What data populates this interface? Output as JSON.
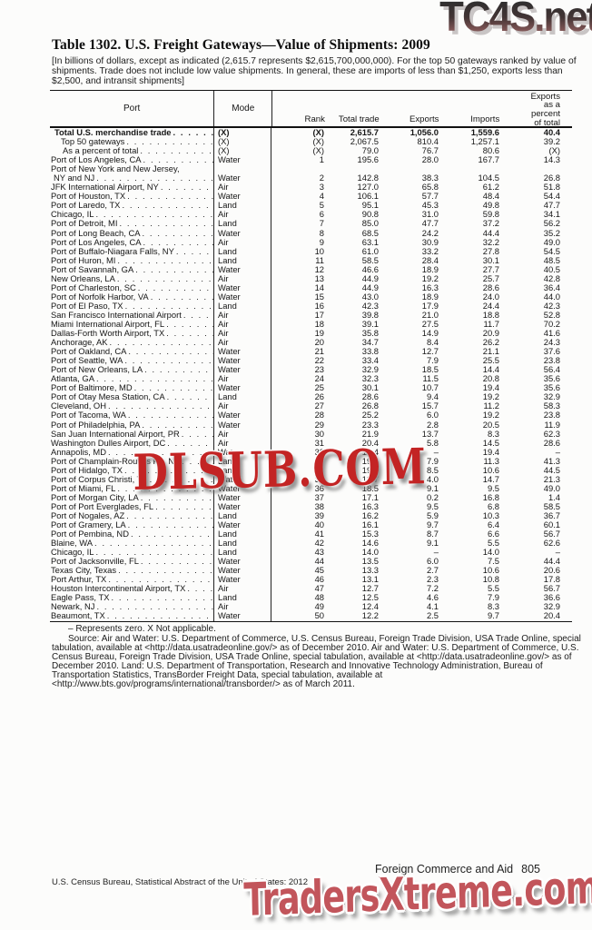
{
  "watermarks": {
    "top": "TC4S.net",
    "middle": "DLSUB.COM",
    "bottom": "TradersXtreme.com"
  },
  "title": "Table 1302. U.S. Freight Gateways—Value of Shipments: 2009",
  "note": "[In billions of dollars, except as indicated (2,615.7 represents $2,615,700,000,000). For the top 50 gateways ranked by value of shipments. Trade does not include low value shipments. In general, these are imports of less than $1,250, exports less than $2,500, and intransit shipments]",
  "table": {
    "headers": {
      "port": "Port",
      "mode": "Mode",
      "rank": "Rank",
      "total": "Total trade",
      "exports": "Exports",
      "imports": "Imports",
      "pct_lines": [
        "Exports",
        "as a",
        "percent",
        "of total"
      ]
    },
    "rows": [
      {
        "port": "Total U.S. merchandise trade",
        "mode": "(X)",
        "rank": "(X)",
        "total": "2,615.7",
        "exports": "1,056.0",
        "imports": "1,559.6",
        "pct": "40.4",
        "bold": true,
        "indent": 4
      },
      {
        "port": "Top 50 gateways",
        "mode": "(X)",
        "rank": "(X)",
        "total": "2,067.5",
        "exports": "810.4",
        "imports": "1,257.1",
        "pct": "39.2",
        "indent": 11
      },
      {
        "port": "As a percent of total",
        "mode": "(X)",
        "rank": "(X)",
        "total": "79.0",
        "exports": "76.7",
        "imports": "80.6",
        "pct": "(X)",
        "indent": 13
      },
      {
        "port": "Port of Los Angeles, CA",
        "mode": "Water",
        "rank": "1",
        "total": "195.6",
        "exports": "28.0",
        "imports": "167.7",
        "pct": "14.3"
      },
      {
        "pre_line": "Port of New York and New Jersey,",
        "port": "NY and NJ",
        "mode": "Water",
        "rank": "2",
        "total": "142.8",
        "exports": "38.3",
        "imports": "104.5",
        "pct": "26.8",
        "indent": 3
      },
      {
        "port": "JFK International Airport, NY",
        "mode": "Air",
        "rank": "3",
        "total": "127.0",
        "exports": "65.8",
        "imports": "61.2",
        "pct": "51.8"
      },
      {
        "port": "Port of Houston, TX",
        "mode": "Water",
        "rank": "4",
        "total": "106.1",
        "exports": "57.7",
        "imports": "48.4",
        "pct": "54.4"
      },
      {
        "port": "Port of Laredo, TX",
        "mode": "Land",
        "rank": "5",
        "total": "95.1",
        "exports": "45.3",
        "imports": "49.8",
        "pct": "47.7"
      },
      {
        "port": "Chicago, IL",
        "mode": "Air",
        "rank": "6",
        "total": "90.8",
        "exports": "31.0",
        "imports": "59.8",
        "pct": "34.1"
      },
      {
        "port": "Port of Detroit, MI",
        "mode": "Land",
        "rank": "7",
        "total": "85.0",
        "exports": "47.7",
        "imports": "37.2",
        "pct": "56.2"
      },
      {
        "port": "Port of Long Beach, CA",
        "mode": "Water",
        "rank": "8",
        "total": "68.5",
        "exports": "24.2",
        "imports": "44.4",
        "pct": "35.2"
      },
      {
        "port": "Port of Los Angeles, CA",
        "mode": "Air",
        "rank": "9",
        "total": "63.1",
        "exports": "30.9",
        "imports": "32.2",
        "pct": "49.0"
      },
      {
        "port": "Port of Buffalo-Niagara Falls, NY",
        "mode": "Land",
        "rank": "10",
        "total": "61.0",
        "exports": "33.2",
        "imports": "27.8",
        "pct": "54.5"
      },
      {
        "port": "Port of Huron, MI",
        "mode": "Land",
        "rank": "11",
        "total": "58.5",
        "exports": "28.4",
        "imports": "30.1",
        "pct": "48.5"
      },
      {
        "port": "Port of Savannah, GA",
        "mode": "Water",
        "rank": "12",
        "total": "46.6",
        "exports": "18.9",
        "imports": "27.7",
        "pct": "40.5"
      },
      {
        "port": "New Orleans, LA",
        "mode": "Air",
        "rank": "13",
        "total": "44.9",
        "exports": "19.2",
        "imports": "25.7",
        "pct": "42.8"
      },
      {
        "port": "Port of Charleston, SC",
        "mode": "Water",
        "rank": "14",
        "total": "44.9",
        "exports": "16.3",
        "imports": "28.6",
        "pct": "36.4"
      },
      {
        "port": "Port of Norfolk Harbor, VA",
        "mode": "Water",
        "rank": "15",
        "total": "43.0",
        "exports": "18.9",
        "imports": "24.0",
        "pct": "44.0"
      },
      {
        "port": "Port of El Paso, TX",
        "mode": "Land",
        "rank": "16",
        "total": "42.3",
        "exports": "17.9",
        "imports": "24.4",
        "pct": "42.3"
      },
      {
        "port": "San Francisco International Airport",
        "mode": "Air",
        "rank": "17",
        "total": "39.8",
        "exports": "21.0",
        "imports": "18.8",
        "pct": "52.8"
      },
      {
        "port": "Miami International Airport, FL",
        "mode": "Air",
        "rank": "18",
        "total": "39.1",
        "exports": "27.5",
        "imports": "11.7",
        "pct": "70.2"
      },
      {
        "port": "Dallas-Forth Worth Airport, TX",
        "mode": "Air",
        "rank": "19",
        "total": "35.8",
        "exports": "14.9",
        "imports": "20.9",
        "pct": "41.6"
      },
      {
        "port": "Anchorage, AK",
        "mode": "Air",
        "rank": "20",
        "total": "34.7",
        "exports": "8.4",
        "imports": "26.2",
        "pct": "24.3"
      },
      {
        "port": "Port of Oakland, CA",
        "mode": "Water",
        "rank": "21",
        "total": "33.8",
        "exports": "12.7",
        "imports": "21.1",
        "pct": "37.6"
      },
      {
        "port": "Port of Seattle, WA",
        "mode": "Water",
        "rank": "22",
        "total": "33.4",
        "exports": "7.9",
        "imports": "25.5",
        "pct": "23.8"
      },
      {
        "port": "Port of New Orleans, LA",
        "mode": "Water",
        "rank": "23",
        "total": "32.9",
        "exports": "18.5",
        "imports": "14.4",
        "pct": "56.4"
      },
      {
        "port": "Atlanta, GA",
        "mode": "Air",
        "rank": "24",
        "total": "32.3",
        "exports": "11.5",
        "imports": "20.8",
        "pct": "35.6"
      },
      {
        "port": "Port of Baltimore, MD",
        "mode": "Water",
        "rank": "25",
        "total": "30.1",
        "exports": "10.7",
        "imports": "19.4",
        "pct": "35.6"
      },
      {
        "port": "Port of Otay Mesa Station, CA",
        "mode": "Land",
        "rank": "26",
        "total": "28.6",
        "exports": "9.4",
        "imports": "19.2",
        "pct": "32.9"
      },
      {
        "port": "Cleveland, OH",
        "mode": "Air",
        "rank": "27",
        "total": "26.8",
        "exports": "15.7",
        "imports": "11.2",
        "pct": "58.3"
      },
      {
        "port": "Port of Tacoma, WA",
        "mode": "Water",
        "rank": "28",
        "total": "25.2",
        "exports": "6.0",
        "imports": "19.2",
        "pct": "23.8"
      },
      {
        "port": "Port of Philadelphia, PA",
        "mode": "Water",
        "rank": "29",
        "total": "23.3",
        "exports": "2.8",
        "imports": "20.5",
        "pct": "11.9"
      },
      {
        "port": "San Juan International Airport, PR",
        "mode": "Air",
        "rank": "30",
        "total": "21.9",
        "exports": "13.7",
        "imports": "8.3",
        "pct": "62.3"
      },
      {
        "port": "Washington Dulles Airport, DC",
        "mode": "Air",
        "rank": "31",
        "total": "20.4",
        "exports": "5.8",
        "imports": "14.5",
        "pct": "28.6"
      },
      {
        "port": "Annapolis, MD",
        "mode": "Water",
        "rank": "32",
        "total": "19.4",
        "exports": "–",
        "imports": "19.4",
        "pct": "–"
      },
      {
        "port": "Port of Champlain-Rouses Pt., NY",
        "mode": "Land",
        "rank": "33",
        "total": "19.2",
        "exports": "7.9",
        "imports": "11.3",
        "pct": "41.3"
      },
      {
        "port": "Port of Hidalgo, TX",
        "mode": "Land",
        "rank": "34",
        "total": "19.1",
        "exports": "8.5",
        "imports": "10.6",
        "pct": "44.5"
      },
      {
        "port": "Port of Corpus Christi, TX",
        "mode": "Water",
        "rank": "35",
        "total": "18.7",
        "exports": "4.0",
        "imports": "14.7",
        "pct": "21.3"
      },
      {
        "port": "Port of Miami, FL",
        "mode": "Water",
        "rank": "36",
        "total": "18.5",
        "exports": "9.1",
        "imports": "9.5",
        "pct": "49.0"
      },
      {
        "port": "Port of Morgan City, LA",
        "mode": "Water",
        "rank": "37",
        "total": "17.1",
        "exports": "0.2",
        "imports": "16.8",
        "pct": "1.4"
      },
      {
        "port": "Port of Port Everglades, FL",
        "mode": "Water",
        "rank": "38",
        "total": "16.3",
        "exports": "9.5",
        "imports": "6.8",
        "pct": "58.5"
      },
      {
        "port": "Port of Nogales, AZ",
        "mode": "Land",
        "rank": "39",
        "total": "16.2",
        "exports": "5.9",
        "imports": "10.3",
        "pct": "36.7"
      },
      {
        "port": "Port of Gramery, LA",
        "mode": "Water",
        "rank": "40",
        "total": "16.1",
        "exports": "9.7",
        "imports": "6.4",
        "pct": "60.1"
      },
      {
        "port": "Port of Pembina, ND",
        "mode": "Land",
        "rank": "41",
        "total": "15.3",
        "exports": "8.7",
        "imports": "6.6",
        "pct": "56.7"
      },
      {
        "port": "Blaine, WA",
        "mode": "Land",
        "rank": "42",
        "total": "14.6",
        "exports": "9.1",
        "imports": "5.5",
        "pct": "62.6"
      },
      {
        "port": "Chicago, IL",
        "mode": "Land",
        "rank": "43",
        "total": "14.0",
        "exports": "–",
        "imports": "14.0",
        "pct": "–"
      },
      {
        "port": "Port of Jacksonville, FL",
        "mode": "Water",
        "rank": "44",
        "total": "13.5",
        "exports": "6.0",
        "imports": "7.5",
        "pct": "44.4"
      },
      {
        "port": "Texas City, Texas",
        "mode": "Water",
        "rank": "45",
        "total": "13.3",
        "exports": "2.7",
        "imports": "10.6",
        "pct": "20.6"
      },
      {
        "port": "Port Arthur, TX",
        "mode": "Water",
        "rank": "46",
        "total": "13.1",
        "exports": "2.3",
        "imports": "10.8",
        "pct": "17.8"
      },
      {
        "port": "Houston Intercontinental Airport, TX",
        "mode": "Air",
        "rank": "47",
        "total": "12.7",
        "exports": "7.2",
        "imports": "5.5",
        "pct": "56.7"
      },
      {
        "port": "Eagle Pass, TX",
        "mode": "Land",
        "rank": "48",
        "total": "12.5",
        "exports": "4.6",
        "imports": "7.9",
        "pct": "36.6"
      },
      {
        "port": "Newark, NJ",
        "mode": "Air",
        "rank": "49",
        "total": "12.4",
        "exports": "4.1",
        "imports": "8.3",
        "pct": "32.9"
      },
      {
        "port": "Beaumont, TX",
        "mode": "Water",
        "rank": "50",
        "total": "12.2",
        "exports": "2.5",
        "imports": "9.7",
        "pct": "20.4"
      }
    ]
  },
  "footnotes": {
    "legend": "– Represents zero. X Not applicable.",
    "source": "Source: Air and Water: U.S. Department of Commerce, U.S. Census Bureau, Foreign Trade Division, USA Trade Online, special tabulation, available at <http://data.usatradeonline.gov/> as of December 2010. Air and Water: U.S. Department of Commerce, U.S. Census Bureau, Foreign Trade Division, USA Trade Online, special tabulation, available at <http://data.usatradeonline.gov/> as of December 2010. Land: U.S. Department of Transportation, Research and Innovative Technology Administration, Bureau of Transportation Statistics, TransBorder Freight Data, special tabulation, available at <http://www.bts.gov/programs/international/transborder/> as of March 2011."
  },
  "footer": {
    "section": "Foreign Commerce and Aid",
    "page": "805",
    "credit": "U.S. Census Bureau, Statistical Abstract of the United States: 2012"
  },
  "colors": {
    "watermark_red": "#c32424",
    "watermark_salmon": "#c2555b",
    "watermark_dark": "#2f2f2f",
    "text": "#161616"
  }
}
